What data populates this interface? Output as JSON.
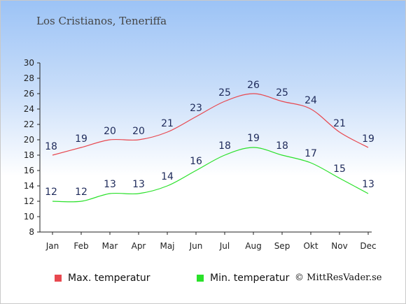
{
  "chart_data": {
    "type": "line",
    "title": "Los Cristianos, Teneriffa",
    "categories": [
      "Jan",
      "Feb",
      "Mar",
      "Apr",
      "Maj",
      "Jun",
      "Jul",
      "Aug",
      "Sep",
      "Okt",
      "Nov",
      "Dec"
    ],
    "series": [
      {
        "name": "Max. temperatur",
        "color": "#e8484f",
        "values": [
          18,
          19,
          20,
          20,
          21,
          23,
          25,
          26,
          25,
          24,
          21,
          19
        ]
      },
      {
        "name": "Min. temperatur",
        "color": "#2ae12a",
        "values": [
          12,
          12,
          13,
          13,
          14,
          16,
          18,
          19,
          18,
          17,
          15,
          13
        ]
      }
    ],
    "ylim": [
      8,
      30
    ],
    "yticks": [
      8,
      10,
      12,
      14,
      16,
      18,
      20,
      22,
      24,
      26,
      28,
      30
    ],
    "grid": false,
    "legend_position": "bottom",
    "data_labels": true
  },
  "credit": "© MittResVader.se"
}
